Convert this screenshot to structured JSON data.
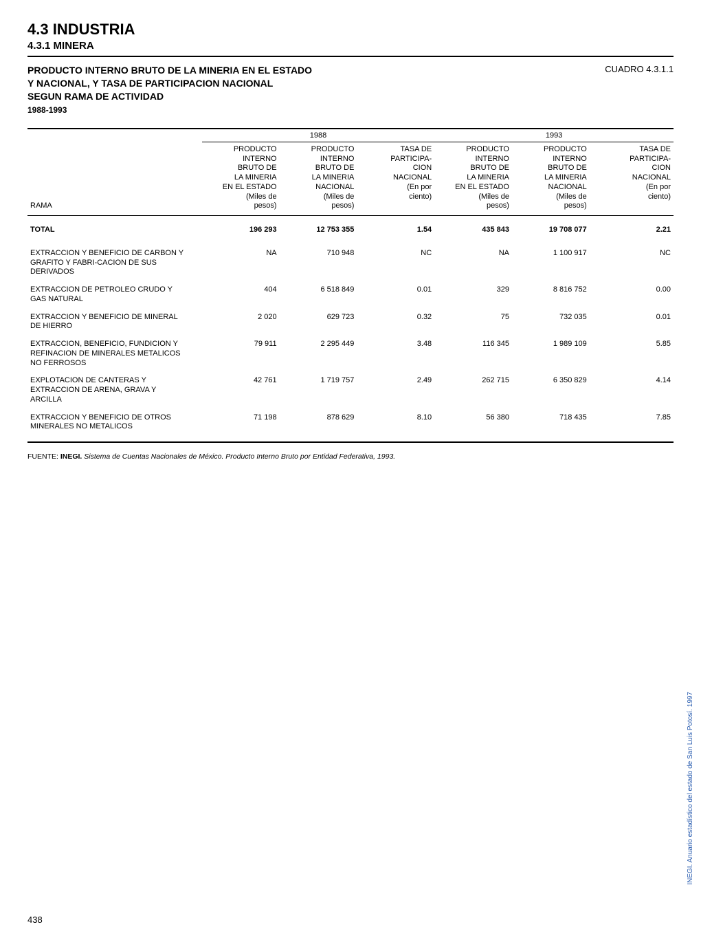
{
  "header": {
    "section_number_title": "4.3 INDUSTRIA",
    "subsection": "4.3.1 MINERA",
    "title_line1": "PRODUCTO INTERNO BRUTO DE LA MINERIA EN EL ESTADO",
    "title_line2": "Y NACIONAL, Y TASA DE PARTICIPACION NACIONAL",
    "title_line3": "SEGUN RAMA DE ACTIVIDAD",
    "years": "1988-1993",
    "cuadro": "CUADRO 4.3.1.1"
  },
  "table": {
    "year_1988": "1988",
    "year_1993": "1993",
    "col_rama": "RAMA",
    "col_head_producto_estado": "PRODUCTO\nINTERNO\nBRUTO DE\nLA MINERIA\nEN EL ESTADO\n(Miles de\npesos)",
    "col_head_producto_nacional": "PRODUCTO\nINTERNO\nBRUTO DE\nLA MINERIA\nNACIONAL\n(Miles de\npesos)",
    "col_head_tasa": "TASA DE\nPARTICIPA-\nCION\nNACIONAL\n(En por\nciento)",
    "rows": [
      {
        "rama": "TOTAL",
        "e88": "196 293",
        "n88": "12 753 355",
        "t88": "1.54",
        "e93": "435 843",
        "n93": "19 708 077",
        "t93": "2.21",
        "total": true
      },
      {
        "rama": "EXTRACCION Y BENEFICIO DE CARBON Y GRAFITO Y FABRI-CACION DE SUS DERIVADOS",
        "e88": "NA",
        "n88": "710 948",
        "t88": "NC",
        "e93": "NA",
        "n93": "1 100 917",
        "t93": "NC"
      },
      {
        "rama": "EXTRACCION DE PETROLEO CRUDO Y GAS NATURAL",
        "e88": "404",
        "n88": "6 518 849",
        "t88": "0.01",
        "e93": "329",
        "n93": "8 816 752",
        "t93": "0.00"
      },
      {
        "rama": "EXTRACCION Y BENEFICIO DE MINERAL DE HIERRO",
        "e88": "2 020",
        "n88": "629 723",
        "t88": "0.32",
        "e93": "75",
        "n93": "732 035",
        "t93": "0.01"
      },
      {
        "rama": "EXTRACCION, BENEFICIO, FUNDICION Y REFINACION DE MINERALES METALICOS NO FERROSOS",
        "e88": "79 911",
        "n88": "2 295 449",
        "t88": "3.48",
        "e93": "116 345",
        "n93": "1 989 109",
        "t93": "5.85"
      },
      {
        "rama": "EXPLOTACION DE CANTERAS Y EXTRACCION DE ARENA, GRAVA Y ARCILLA",
        "e88": "42 761",
        "n88": "1 719 757",
        "t88": "2.49",
        "e93": "262 715",
        "n93": "6 350 829",
        "t93": "4.14"
      },
      {
        "rama": "EXTRACCION Y BENEFICIO DE OTROS MINERALES NO METALICOS",
        "e88": "71 198",
        "n88": "878 629",
        "t88": "8.10",
        "e93": "56 380",
        "n93": "718 435",
        "t93": "7.85",
        "last": true
      }
    ]
  },
  "fuente": {
    "prefix": "FUENTE: ",
    "bold": "INEGI.",
    "italic": " Sistema de Cuentas Nacionales de México. Producto Interno Bruto por Entidad Federativa, 1993."
  },
  "sidetext": "INEGI. Anuario estadístico del estado de San Luis Potosí. 1997",
  "pagenum": "438",
  "style": {
    "colors": {
      "text": "#000000",
      "bg": "#ffffff",
      "side": "#2a5db0"
    },
    "fontsizes": {
      "section": 22,
      "sub": 15,
      "head": 14,
      "table": 11,
      "fuente": 10.5,
      "side": 10,
      "pagenum": 13
    },
    "col_widths_pct": [
      27,
      12,
      12,
      12,
      12,
      12,
      13
    ]
  }
}
